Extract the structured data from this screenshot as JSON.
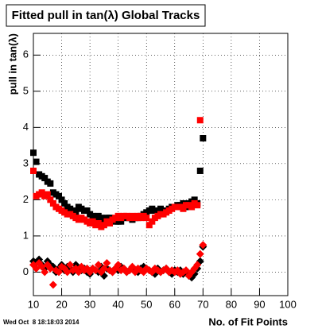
{
  "chart_data": {
    "type": "scatter",
    "title": "Fitted pull in tan(λ)  Global Tracks",
    "x_label": "No. of Fit Points",
    "y_label": "pull in tan(λ)",
    "footer": "Wed Oct  8 18:18:03 2014",
    "x": [
      10,
      11,
      12,
      13,
      14,
      15,
      16,
      17,
      18,
      19,
      20,
      21,
      22,
      23,
      24,
      25,
      26,
      27,
      28,
      29,
      30,
      31,
      32,
      33,
      34,
      35,
      36,
      37,
      38,
      39,
      40,
      41,
      42,
      43,
      44,
      45,
      46,
      47,
      48,
      49,
      50,
      51,
      52,
      53,
      54,
      55,
      56,
      57,
      58,
      59,
      60,
      61,
      62,
      63,
      64,
      65,
      66,
      67,
      68,
      69,
      70
    ],
    "series": [
      {
        "color": "#000000",
        "marker": "square",
        "values": [
          3.3,
          3.05,
          2.7,
          2.65,
          2.6,
          2.5,
          2.45,
          2.2,
          2.15,
          2.1,
          2.0,
          1.9,
          1.8,
          1.75,
          1.7,
          1.65,
          1.8,
          1.75,
          1.7,
          1.7,
          1.6,
          1.55,
          1.5,
          1.55,
          1.5,
          1.45,
          1.5,
          1.5,
          1.45,
          1.4,
          1.4,
          1.4,
          1.5,
          1.5,
          1.5,
          1.45,
          1.5,
          1.5,
          1.55,
          1.6,
          1.65,
          1.7,
          1.75,
          1.7,
          1.7,
          1.75,
          1.7,
          1.7,
          1.75,
          1.8,
          1.8,
          1.85,
          1.85,
          1.9,
          1.8,
          1.9,
          1.95,
          2.0,
          1.9,
          2.8,
          3.7
        ]
      },
      {
        "color": "#ff0000",
        "marker": "square",
        "values": [
          2.8,
          2.1,
          2.15,
          2.2,
          2.1,
          2.15,
          2.0,
          1.9,
          1.8,
          1.75,
          1.7,
          1.65,
          1.6,
          1.6,
          1.55,
          1.5,
          1.45,
          1.5,
          1.45,
          1.4,
          1.35,
          1.4,
          1.3,
          1.35,
          1.25,
          1.3,
          1.4,
          1.35,
          1.45,
          1.5,
          1.55,
          1.5,
          1.55,
          1.55,
          1.5,
          1.55,
          1.5,
          1.55,
          1.5,
          1.55,
          1.5,
          1.3,
          1.4,
          1.5,
          1.55,
          1.6,
          1.6,
          1.65,
          1.7,
          1.75,
          1.8,
          1.8,
          1.8,
          1.75,
          1.85,
          1.85,
          1.8,
          1.9,
          1.85,
          4.2,
          null
        ]
      },
      {
        "color": "#000000",
        "marker": "diamond",
        "values": [
          0.3,
          0.25,
          0.35,
          0.2,
          0.1,
          0.3,
          0.2,
          0.15,
          0.0,
          0.1,
          0.2,
          0.05,
          0.15,
          0.1,
          0.0,
          0.2,
          0.1,
          0.05,
          0.1,
          0.0,
          -0.05,
          0.1,
          0.05,
          0.0,
          0.15,
          -0.1,
          0.1,
          0.05,
          0.0,
          0.1,
          0.05,
          0.15,
          0.1,
          0.0,
          0.05,
          0.1,
          0.05,
          0.0,
          0.1,
          0.15,
          0.1,
          0.05,
          0.0,
          -0.05,
          0.1,
          0.0,
          0.05,
          0.1,
          0.0,
          -0.05,
          0.05,
          0.0,
          0.05,
          -0.05,
          0.0,
          -0.1,
          -0.15,
          -0.05,
          0.1,
          0.3,
          0.7
        ]
      },
      {
        "color": "#ff0000",
        "marker": "diamond",
        "values": [
          0.2,
          0.1,
          0.25,
          0.15,
          0.0,
          0.2,
          0.1,
          -0.35,
          0.05,
          0.0,
          0.15,
          0.1,
          0.0,
          0.2,
          0.05,
          0.1,
          0.0,
          0.15,
          0.05,
          0.1,
          0.0,
          0.1,
          0.05,
          0.2,
          0.0,
          0.1,
          0.25,
          0.05,
          0.0,
          0.1,
          0.2,
          0.05,
          0.1,
          0.0,
          0.05,
          0.15,
          0.0,
          0.1,
          0.05,
          0.0,
          0.1,
          0.05,
          0.0,
          0.1,
          0.05,
          0.0,
          0.05,
          0.1,
          0.0,
          0.05,
          0.0,
          0.05,
          -0.05,
          0.0,
          0.05,
          -0.1,
          0.0,
          0.1,
          0.2,
          0.5,
          0.75
        ]
      }
    ],
    "xlim": [
      10,
      100
    ],
    "xticks": [
      10,
      20,
      30,
      40,
      50,
      60,
      70,
      80,
      90,
      100
    ],
    "ylim": [
      -0.65,
      6.6
    ],
    "yticks": [
      0,
      1,
      2,
      3,
      4,
      5,
      6
    ],
    "grid": true
  }
}
